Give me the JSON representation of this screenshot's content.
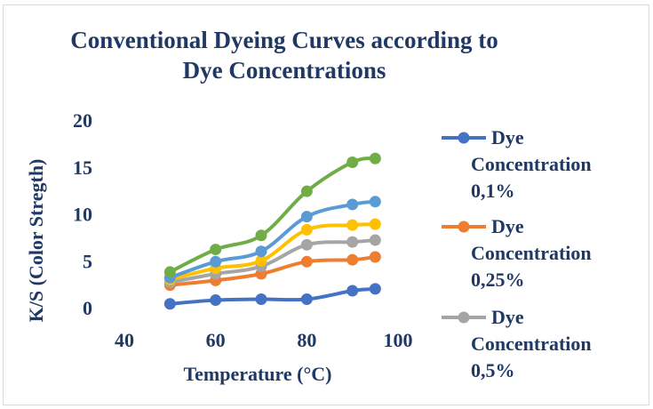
{
  "chart_data": {
    "type": "line",
    "title": "Conventional Dyeing Curves according to Dye Concentrations",
    "xlabel": "Temperature (°C)",
    "ylabel": "K/S (Color Stregth)",
    "xlim": [
      40,
      100
    ],
    "ylim": [
      0,
      20
    ],
    "xticks": [
      40,
      60,
      80,
      100
    ],
    "yticks": [
      0,
      5,
      10,
      15,
      20
    ],
    "grid": false,
    "legend_position": "right",
    "x": [
      50,
      60,
      70,
      80,
      90,
      95
    ],
    "series": [
      {
        "name": "Dye Concentration 0,1%",
        "color": "#4472c4",
        "values": [
          0.4,
          0.8,
          0.9,
          0.9,
          1.8,
          2.0
        ]
      },
      {
        "name": "Dye Concentration 0,25%",
        "color": "#ed7d31",
        "values": [
          2.4,
          2.9,
          3.6,
          4.9,
          5.1,
          5.4
        ]
      },
      {
        "name": "Dye Concentration 0,5%",
        "color": "#a5a5a5",
        "values": [
          2.7,
          3.6,
          4.4,
          6.7,
          7.0,
          7.2
        ]
      },
      {
        "color": "#ffc000",
        "values": [
          3.0,
          4.2,
          5.0,
          8.3,
          8.8,
          8.9
        ]
      },
      {
        "color": "#5b9bd5",
        "values": [
          3.2,
          4.9,
          6.0,
          9.7,
          11.0,
          11.3
        ]
      },
      {
        "color": "#70ad47",
        "values": [
          3.8,
          6.2,
          7.7,
          12.4,
          15.5,
          15.9
        ]
      }
    ]
  }
}
